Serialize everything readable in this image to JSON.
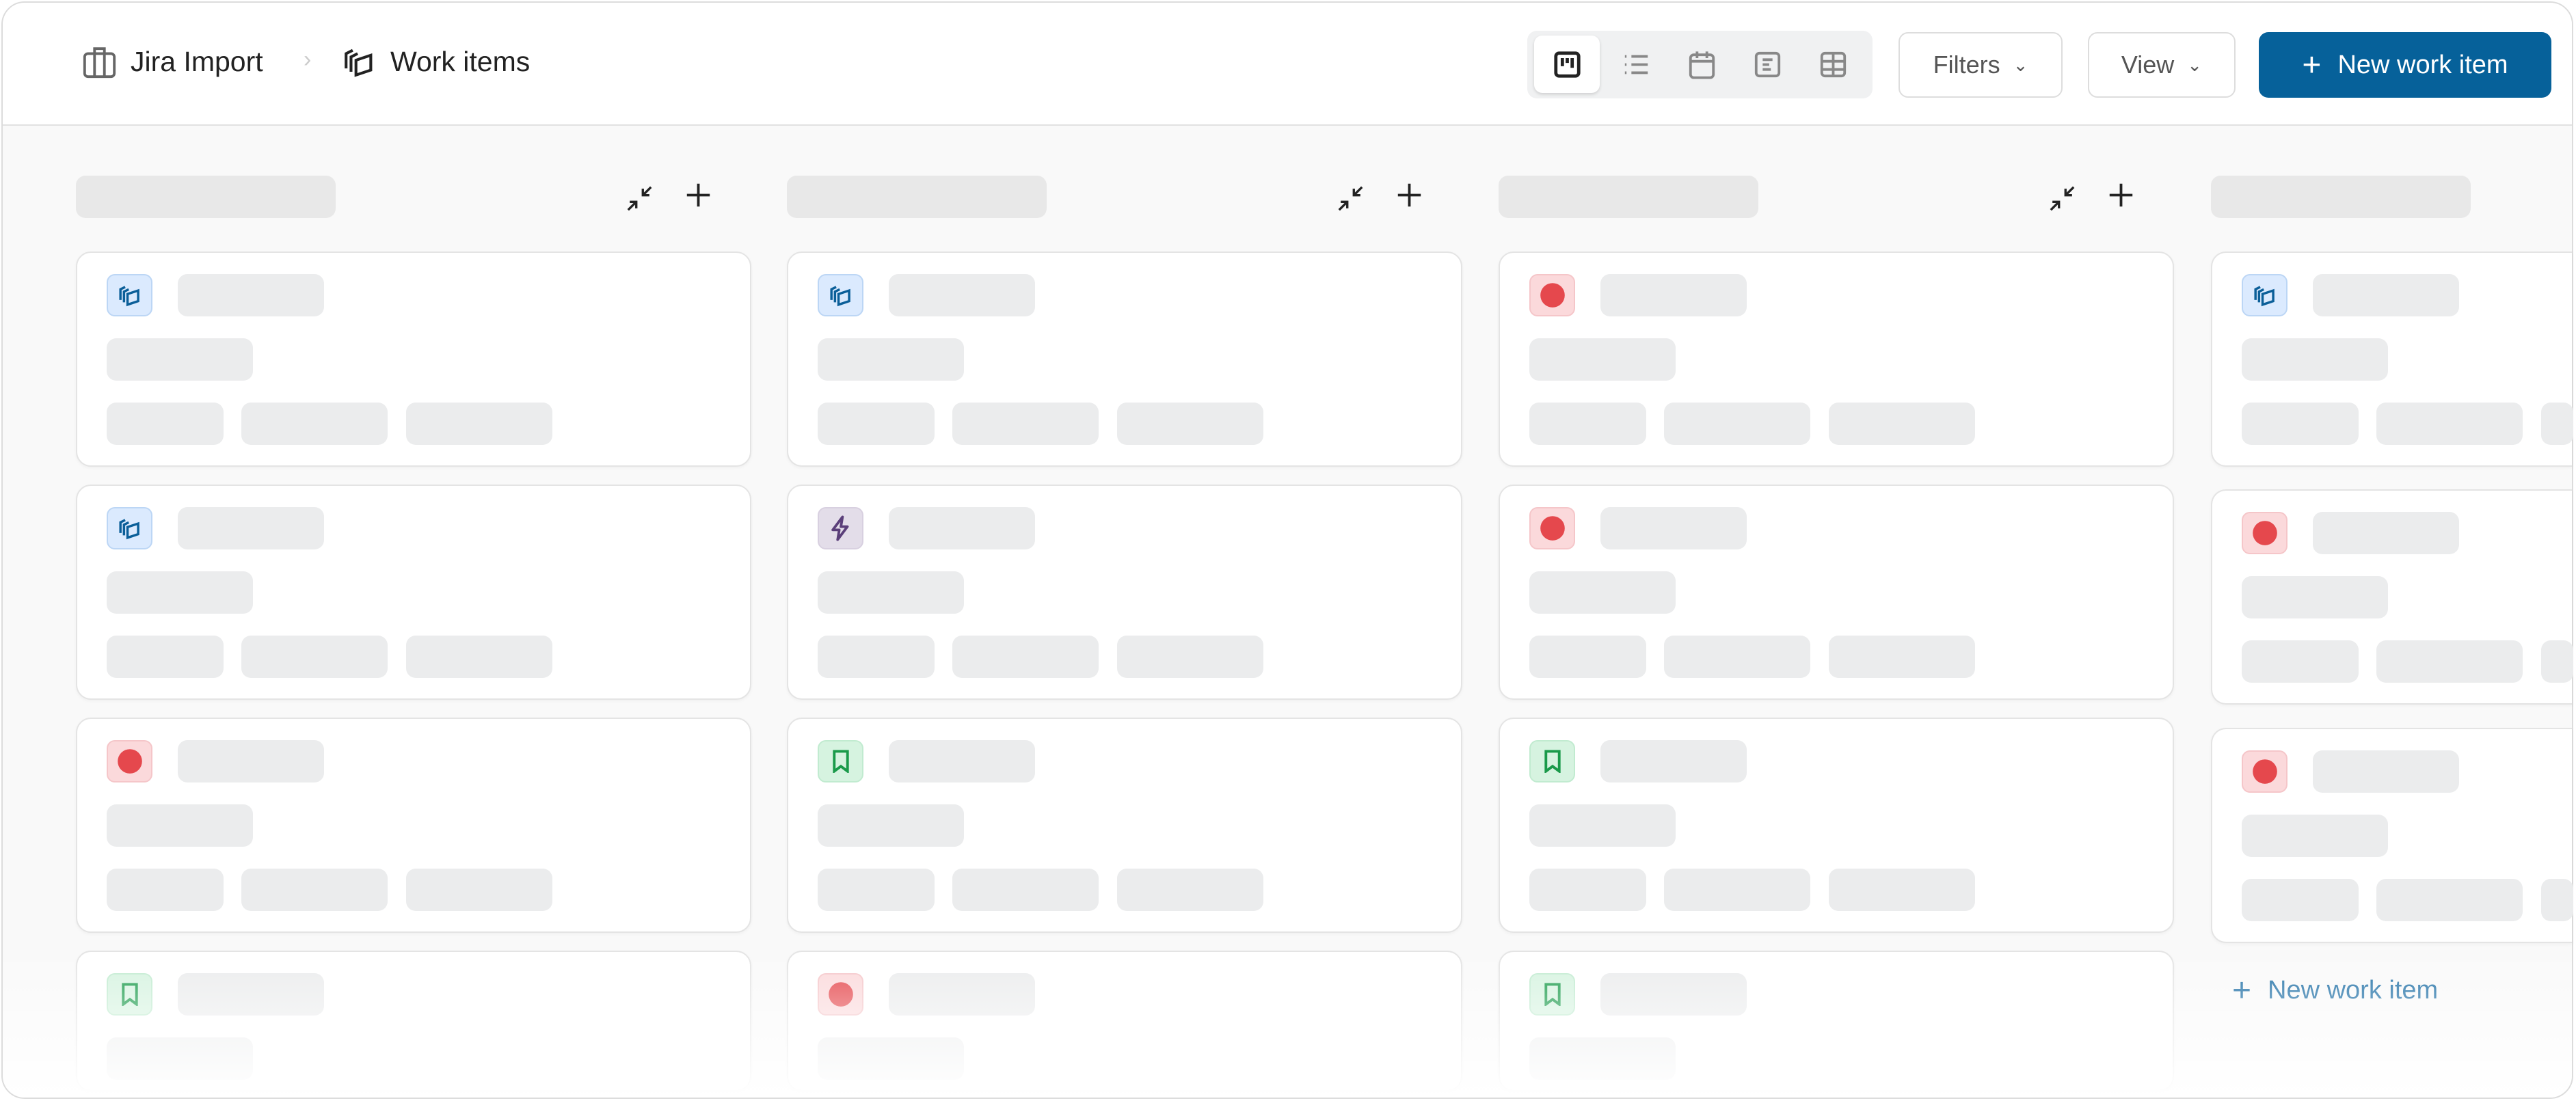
{
  "breadcrumb": {
    "project": "Jira Import",
    "page": "Work items"
  },
  "views": [
    "board-icon",
    "list-icon",
    "calendar-icon",
    "spreadsheet-icon",
    "gantt-icon"
  ],
  "active_view": "board-icon",
  "toolbar": {
    "filters_label": "Filters",
    "view_label": "View",
    "new_item_label": "New work item"
  },
  "columns": [
    {
      "cards": [
        "work-items",
        "work-items",
        "bug",
        "story"
      ]
    },
    {
      "cards": [
        "work-items",
        "epic",
        "story",
        "bug"
      ]
    },
    {
      "cards": [
        "bug",
        "bug",
        "story",
        "story"
      ]
    },
    {
      "cards": [
        "work-items",
        "bug",
        "bug"
      ]
    }
  ],
  "column_footer": {
    "add_label": "New work item"
  },
  "colors": {
    "primary": "#06619a",
    "work-items": "#dbeafe",
    "bug": "#fbd9db",
    "story": "#d6f3e0",
    "epic": "#e3dde9"
  }
}
